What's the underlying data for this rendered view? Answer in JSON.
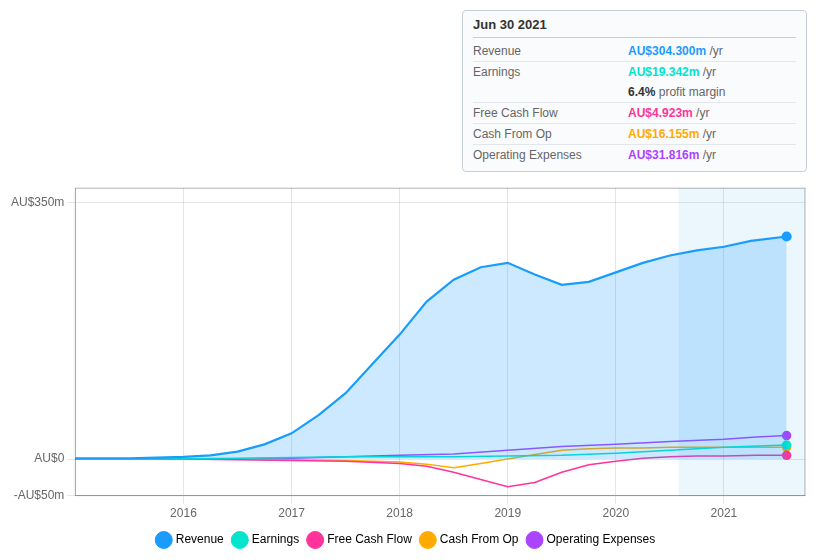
{
  "chart_data": {
    "type": "line",
    "series": [
      {
        "name": "Revenue",
        "type": "area",
        "color": "#1a9cff",
        "x": [
          2015.0,
          2015.25,
          2015.5,
          2015.75,
          2016.0,
          2016.25,
          2016.5,
          2016.75,
          2017.0,
          2017.25,
          2017.5,
          2017.75,
          2018.0,
          2018.25,
          2018.5,
          2018.75,
          2019.0,
          2019.25,
          2019.5,
          2019.75,
          2020.0,
          2020.25,
          2020.5,
          2020.75,
          2021.0,
          2021.25,
          2021.58
        ],
        "values": [
          1,
          1,
          1,
          2,
          3,
          5,
          10,
          20,
          35,
          60,
          90,
          130,
          170,
          215,
          245,
          262,
          268,
          252,
          238,
          242,
          255,
          268,
          278,
          285,
          290,
          298,
          304
        ]
      },
      {
        "name": "Earnings",
        "type": "line",
        "color": "#00e5cc",
        "x": [
          2015.0,
          2015.5,
          2016.0,
          2016.5,
          2017.0,
          2017.5,
          2018.0,
          2018.5,
          2019.0,
          2019.5,
          2020.0,
          2020.5,
          2021.0,
          2021.58
        ],
        "values": [
          0,
          0,
          0.5,
          1,
          2,
          3,
          3,
          3,
          4,
          5,
          8,
          12,
          16,
          19
        ]
      },
      {
        "name": "Free Cash Flow",
        "type": "line",
        "color": "#ff3399",
        "x": [
          2015.0,
          2015.5,
          2016.0,
          2016.5,
          2017.0,
          2017.5,
          2018.0,
          2018.25,
          2018.5,
          2018.75,
          2019.0,
          2019.25,
          2019.5,
          2019.75,
          2020.0,
          2020.25,
          2020.5,
          2020.75,
          2021.0,
          2021.3,
          2021.58
        ],
        "values": [
          0,
          0,
          0,
          -1,
          -2,
          -3,
          -6,
          -10,
          -18,
          -28,
          -38,
          -32,
          -18,
          -8,
          -3,
          1,
          3,
          4,
          4,
          5,
          5
        ]
      },
      {
        "name": "Cash From Op",
        "type": "line",
        "color": "#ffaa00",
        "x": [
          2015.0,
          2015.5,
          2016.0,
          2016.5,
          2017.0,
          2017.5,
          2018.0,
          2018.25,
          2018.5,
          2018.75,
          2019.0,
          2019.25,
          2019.5,
          2019.75,
          2020.0,
          2020.25,
          2020.5,
          2020.75,
          2021.0,
          2021.3,
          2021.58
        ],
        "values": [
          0,
          0,
          0,
          0,
          -1,
          -2,
          -4,
          -7,
          -12,
          -6,
          0,
          6,
          12,
          14,
          15,
          15,
          16,
          16,
          16,
          16,
          16
        ]
      },
      {
        "name": "Operating Expenses",
        "type": "line",
        "color": "#aa44ff",
        "x": [
          2015.0,
          2015.5,
          2016.0,
          2016.5,
          2017.0,
          2017.5,
          2018.0,
          2018.5,
          2019.0,
          2019.5,
          2020.0,
          2020.5,
          2021.0,
          2021.3,
          2021.58
        ],
        "values": [
          0,
          0,
          0,
          0,
          1,
          3,
          5,
          7,
          12,
          17,
          20,
          24,
          27,
          30,
          32
        ]
      }
    ],
    "xlim": [
      2015.0,
      2021.75
    ],
    "xticks": [
      2016,
      2017,
      2018,
      2019,
      2020,
      2021
    ],
    "ylim": [
      -50,
      370
    ],
    "yticks": [
      {
        "value": -50,
        "label": "-AU$50m"
      },
      {
        "value": 0,
        "label": "AU$0"
      },
      {
        "value": 350,
        "label": "AU$350m"
      }
    ],
    "grid": true,
    "legend": "bottom",
    "highlight_x": [
      2020.58,
      2021.75
    ],
    "infobox": {
      "title": "Jun 30 2021",
      "rows": [
        {
          "label": "Revenue",
          "value": "AU$304.300m",
          "unit": "/yr",
          "color": "#1a9cff"
        },
        {
          "label": "Earnings",
          "value": "AU$19.342m",
          "unit": "/yr",
          "color": "#00e5cc"
        },
        {
          "value": "6.4%",
          "unit": "profit margin"
        },
        {
          "label": "Free Cash Flow",
          "value": "AU$4.923m",
          "unit": "/yr",
          "color": "#ff3399"
        },
        {
          "label": "Cash From Op",
          "value": "AU$16.155m",
          "unit": "/yr",
          "color": "#ffaa00"
        },
        {
          "label": "Operating Expenses",
          "value": "AU$31.816m",
          "unit": "/yr",
          "color": "#aa44ff"
        }
      ]
    }
  }
}
